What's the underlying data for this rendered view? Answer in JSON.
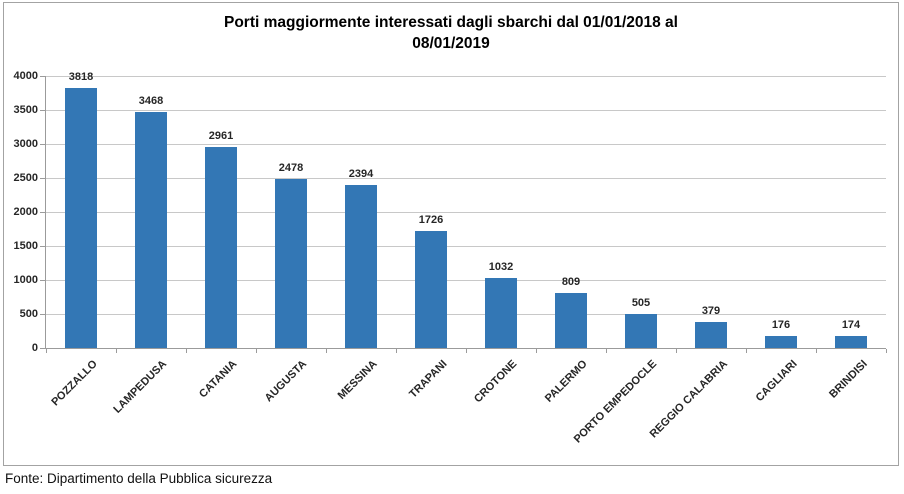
{
  "page": {
    "footer": "Fonte: Dipartimento della Pubblica sicurezza"
  },
  "chart_data": {
    "type": "bar",
    "title": "Porti maggiormente interessati dagli sbarchi dal 01/01/2018 al 08/01/2019",
    "title_lines": [
      "Porti maggiormente interessati dagli sbarchi dal 01/01/2018 al",
      "08/01/2019"
    ],
    "categories": [
      "POZZALLO",
      "LAMPEDUSA",
      "CATANIA",
      "AUGUSTA",
      "MESSINA",
      "TRAPANI",
      "CROTONE",
      "PALERMO",
      "PORTO EMPEDOCLE",
      "REGGIO CALABRIA",
      "CAGLIARI",
      "BRINDISI"
    ],
    "values": [
      3818,
      3468,
      2961,
      2478,
      2394,
      1726,
      1032,
      809,
      505,
      379,
      176,
      174
    ],
    "data_labels": true,
    "xlabel": "",
    "ylabel": "",
    "ylim": [
      0,
      4000
    ],
    "ytick_step": 500,
    "ytick_labels": [
      "0",
      "500",
      "1000",
      "1500",
      "2000",
      "2500",
      "3000",
      "3500",
      "4000"
    ],
    "grid": true,
    "legend_position": "none",
    "bar_color": "#3377B5",
    "gridline_color": "#c8c8c8",
    "axis_color": "#9b9b9b",
    "label_color": "#262626"
  }
}
